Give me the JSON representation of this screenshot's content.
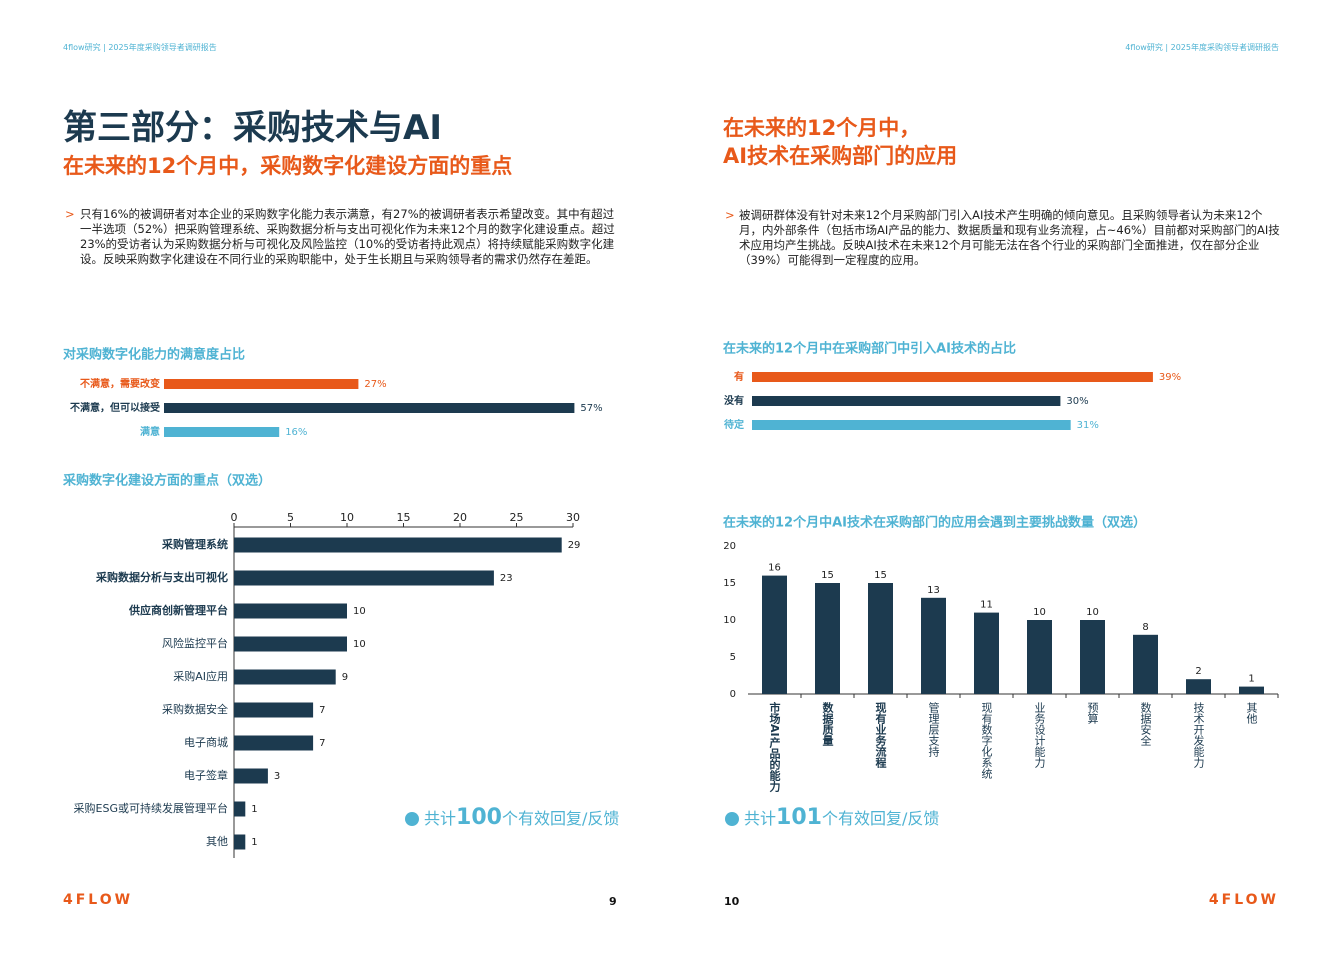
{
  "left_page": {
    "header": "4flow研究 | 2025年度采购领导者调研报告",
    "title": "第三部分：采购技术与AI",
    "subtitle": "在未来的12个月中，采购数字化建设方面的重点",
    "bullet": "只有16%的被调研者对本企业的采购数字化能力表示满意，有27%的被调研者表示希望改变。其中有超过一半选项（52%）把采购管理系统、采购数据分析与支出可视化作为未来12个月的数字化建设重点。超过23%的受访者认为采购数据分析与可视化及风险监控（10%的受访者持此观点）将持续赋能采购数字化建设。反映采购数字化建设在不同行业的采购职能中，处于生长期且与采购领导者的需求仍然存在差距。",
    "note": {
      "prefix": "共计",
      "number": "100",
      "suffix": "个有效回复/反馈"
    },
    "logo": "4FLOW",
    "page_number": "9"
  },
  "right_page": {
    "header": "4flow研究 | 2025年度采购领导者调研报告",
    "title_line1": "在未来的12个月中，",
    "title_line2": "AI技术在采购部门的应用",
    "bullet": "被调研群体没有针对未来12个月采购部门引入AI技术产生明确的倾向意见。且采购领导者认为未来12个月，内外部条件（包括市场AI产品的能力、数据质量和现有业务流程，占~46%）目前都对采购部门的AI技术应用均产生挑战。反映AI技术在未来12个月可能无法在各个行业的采购部门全面推进，仅在部分企业（39%）可能得到一定程度的应用。",
    "note": {
      "prefix": "共计",
      "number": "101",
      "suffix": "个有效回复/反馈"
    },
    "logo": "4FLOW",
    "page_number": "10"
  },
  "chart_data": [
    {
      "type": "bar",
      "orientation": "horizontal",
      "title": "对采购数字化能力的满意度占比",
      "categories": [
        "不满意，需要改变",
        "不满意，但可以接受",
        "满意"
      ],
      "values": [
        27,
        57,
        16
      ],
      "value_labels": [
        "27%",
        "57%",
        "16%"
      ],
      "colors": [
        "#e8591a",
        "#1c3a4f",
        "#4fb3d3"
      ]
    },
    {
      "type": "bar",
      "orientation": "horizontal",
      "title": "采购数字化建设方面的重点（双选）",
      "categories": [
        "采购管理系统",
        "采购数据分析与支出可视化",
        "供应商创新管理平台",
        "风险监控平台",
        "采购AI应用",
        "采购数据安全",
        "电子商城",
        "电子签章",
        "采购ESG或可持续发展管理平台",
        "其他"
      ],
      "values": [
        29,
        23,
        10,
        10,
        9,
        7,
        7,
        3,
        1,
        1
      ],
      "xlim": [
        0,
        30
      ],
      "xticks": [
        0,
        5,
        10,
        15,
        20,
        25,
        30
      ],
      "color": "#1c3a4f"
    },
    {
      "type": "bar",
      "orientation": "horizontal",
      "title": "在未来的12个月中在采购部门中引入AI技术的占比",
      "categories": [
        "有",
        "没有",
        "待定"
      ],
      "values": [
        39,
        30,
        31
      ],
      "value_labels": [
        "39%",
        "30%",
        "31%"
      ],
      "colors": [
        "#e8591a",
        "#1c3a4f",
        "#4fb3d3"
      ]
    },
    {
      "type": "bar",
      "orientation": "vertical",
      "title": "在未来的12个月中AI技术在采购部门的应用会遇到主要挑战数量（双选）",
      "categories": [
        "市场AI产品的能力",
        "数据质量",
        "现有业务流程",
        "管理层支持",
        "现有数字化系统",
        "业务设计能力",
        "预算",
        "数据安全",
        "技术开发能力",
        "其他"
      ],
      "values": [
        16,
        15,
        15,
        13,
        11,
        10,
        10,
        8,
        2,
        1
      ],
      "ylim": [
        0,
        20
      ],
      "yticks": [
        0,
        5,
        10,
        15,
        20
      ],
      "color": "#1c3a4f"
    }
  ]
}
